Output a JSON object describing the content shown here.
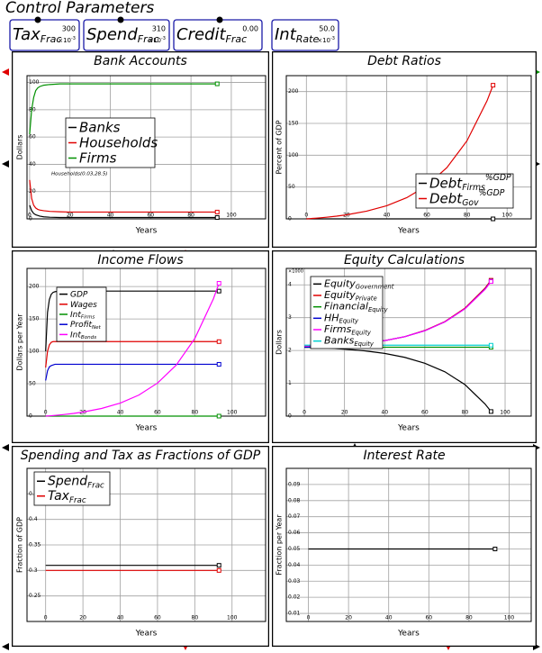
{
  "header": {
    "title": "Control Parameters"
  },
  "controls": [
    {
      "name": "Tax",
      "sub": "Frac",
      "value": "300",
      "scale": "×10",
      "scale_exp": "-3"
    },
    {
      "name": "Spend",
      "sub": "Frac",
      "value": "310",
      "scale": "×10",
      "scale_exp": "-3"
    },
    {
      "name": "Credit",
      "sub": "Frac",
      "value": "0.00"
    },
    {
      "name": "Int",
      "sub": "Rate",
      "value": "50.0",
      "scale": "×10",
      "scale_exp": "-3"
    }
  ],
  "chart_data": [
    {
      "type": "line",
      "title": "Bank Accounts",
      "x_label": "Years",
      "y_label": "Dollars",
      "x": [
        0,
        1,
        2,
        3,
        4,
        5,
        7,
        10,
        15,
        20,
        30,
        40,
        50,
        60,
        70,
        80,
        90,
        93
      ],
      "xlim": [
        -1.3,
        117
      ],
      "xticks": [
        0,
        20,
        40,
        60,
        80,
        100
      ],
      "ylim": [
        0,
        105
      ],
      "yticks": [
        0,
        20,
        40,
        60,
        80,
        100
      ],
      "grid": true,
      "annotations": [
        {
          "text": "Households(0.03,28.5)"
        }
      ],
      "series": [
        {
          "name": "Banks",
          "color": "#000000",
          "values": [
            10,
            6,
            4,
            3,
            2.5,
            2,
            1.5,
            1.2,
            1,
            1,
            1,
            1,
            1,
            1,
            1,
            1,
            1,
            1
          ]
        },
        {
          "name": "Households",
          "color": "#e00000",
          "values": [
            28.5,
            15,
            10,
            8,
            7,
            6.5,
            6,
            5.5,
            5.2,
            5,
            5,
            5,
            5,
            5,
            5,
            5,
            5,
            5
          ]
        },
        {
          "name": "Firms",
          "color": "#009000",
          "values": [
            62,
            80,
            89,
            94,
            96,
            97,
            98,
            98.5,
            99,
            99,
            99,
            99,
            99,
            99,
            99,
            99,
            99,
            99
          ]
        }
      ]
    },
    {
      "type": "line",
      "title": "Debt Ratios",
      "x_label": "Years",
      "y_label": "Percent of GDP",
      "x": [
        0,
        1,
        2,
        3,
        4,
        5,
        7,
        10,
        15,
        20,
        30,
        40,
        50,
        60,
        70,
        80,
        90,
        93
      ],
      "xlim": [
        -10,
        112
      ],
      "xticks": [
        0,
        20,
        40,
        60,
        80,
        100
      ],
      "ylim": [
        0,
        225
      ],
      "yticks": [
        0,
        50,
        100,
        150,
        200
      ],
      "grid": true,
      "series": [
        {
          "name": "Debt",
          "sub": "Firms",
          "sup": "%GDP",
          "color": "#000000",
          "values": [
            0,
            0,
            0,
            0,
            0,
            0,
            0,
            0,
            0,
            0,
            0,
            0,
            0,
            0,
            0,
            0,
            0,
            0
          ]
        },
        {
          "name": "Debt",
          "sub": "Gov",
          "sup": "%GDP",
          "color": "#e00000",
          "values": [
            0,
            0.21,
            0.43,
            0.66,
            0.9,
            1.15,
            1.68,
            2.56,
            4.28,
            6.39,
            12.1,
            20.6,
            33.3,
            52.2,
            80.5,
            122.6,
            185.5,
            210
          ]
        }
      ]
    },
    {
      "type": "line",
      "title": "Income Flows",
      "x_label": "Years",
      "y_label": "Dollars per Year",
      "x": [
        0,
        1,
        2,
        3,
        4,
        5,
        7,
        10,
        15,
        20,
        30,
        40,
        50,
        60,
        70,
        80,
        90,
        93
      ],
      "xlim": [
        -10,
        118
      ],
      "xticks": [
        0,
        20,
        40,
        60,
        80,
        100
      ],
      "ylim": [
        0,
        228
      ],
      "yticks": [
        0,
        50,
        100,
        150,
        200
      ],
      "grid": true,
      "series": [
        {
          "name": "GDP",
          "color": "#000000",
          "values": [
            100,
            160,
            180,
            188,
            191,
            192,
            193,
            193,
            193,
            193,
            193,
            193,
            193,
            193,
            193,
            193,
            193,
            193
          ]
        },
        {
          "name": "Wages",
          "color": "#e00000",
          "values": [
            75,
            100,
            110,
            114,
            115,
            115,
            115,
            115,
            115,
            115,
            115,
            115,
            115,
            115,
            115,
            115,
            115,
            115
          ]
        },
        {
          "name": "Int",
          "sub": "Firms",
          "color": "#009000",
          "values": [
            0,
            0,
            0,
            0,
            0,
            0,
            0,
            0,
            0,
            0,
            0,
            0,
            0,
            0,
            0,
            0,
            0,
            0
          ]
        },
        {
          "name": "Profit",
          "sub": "Net",
          "color": "#0000d0",
          "values": [
            55,
            70,
            76,
            78,
            79,
            80,
            80,
            80,
            80,
            80,
            80,
            80,
            80,
            80,
            80,
            80,
            80,
            80
          ]
        },
        {
          "name": "Int",
          "sub": "Bonds",
          "color": "#ff00ff",
          "values": [
            0,
            0.2,
            0.42,
            0.64,
            0.88,
            1.12,
            1.64,
            2.5,
            4.18,
            6.24,
            11.8,
            20.1,
            32.5,
            51,
            78.6,
            119.7,
            181.1,
            205
          ]
        }
      ]
    },
    {
      "type": "line",
      "title": "Equity Calculations",
      "x_label": "Years",
      "y_label": "Dollars",
      "y_scale_note": "×1000",
      "x": [
        0,
        1,
        2,
        3,
        4,
        5,
        7,
        10,
        15,
        20,
        30,
        40,
        50,
        60,
        70,
        80,
        90,
        93
      ],
      "xlim": [
        -9,
        113
      ],
      "xticks": [
        0,
        20,
        40,
        60,
        80,
        100
      ],
      "ylim": [
        0,
        4.5
      ],
      "yticks": [
        0,
        1,
        2,
        3,
        4
      ],
      "grid": true,
      "series": [
        {
          "name": "Equity",
          "sub": "Government",
          "color": "#000000",
          "values": [
            2.1,
            2.1,
            2.1,
            2.09,
            2.09,
            2.09,
            2.08,
            2.08,
            2.06,
            2.04,
            1.99,
            1.91,
            1.79,
            1.61,
            1.35,
            0.96,
            0.37,
            0.14
          ]
        },
        {
          "name": "Equity",
          "sub": "Private",
          "color": "#e00000",
          "values": [
            2.1,
            2.1,
            2.1,
            2.11,
            2.11,
            2.11,
            2.12,
            2.12,
            2.14,
            2.16,
            2.22,
            2.3,
            2.42,
            2.61,
            2.88,
            3.29,
            3.9,
            4.14
          ]
        },
        {
          "name": "Financial",
          "sub": "Equity",
          "color": "#009000",
          "values": [
            2.1,
            2.1,
            2.1,
            2.1,
            2.1,
            2.1,
            2.1,
            2.1,
            2.1,
            2.1,
            2.1,
            2.1,
            2.1,
            2.1,
            2.1,
            2.1,
            2.1,
            2.1
          ]
        },
        {
          "name": "HH",
          "sub": "Equity",
          "color": "#0000d0",
          "values": [
            2.1,
            2.1,
            2.1,
            2.11,
            2.11,
            2.11,
            2.12,
            2.12,
            2.14,
            2.16,
            2.22,
            2.3,
            2.42,
            2.6,
            2.87,
            3.27,
            3.87,
            4.11
          ]
        },
        {
          "name": "Firms",
          "sub": "Equity",
          "color": "#ff00ff",
          "values": [
            2.14,
            2.14,
            2.14,
            2.14,
            2.14,
            2.14,
            2.14,
            2.15,
            2.16,
            2.17,
            2.22,
            2.3,
            2.42,
            2.6,
            2.87,
            3.27,
            3.86,
            4.1
          ]
        },
        {
          "name": "Banks",
          "sub": "Equity",
          "color": "#00d0d0",
          "values": [
            2.16,
            2.16,
            2.16,
            2.16,
            2.16,
            2.16,
            2.16,
            2.16,
            2.16,
            2.16,
            2.16,
            2.16,
            2.16,
            2.16,
            2.16,
            2.16,
            2.16,
            2.16
          ]
        }
      ]
    },
    {
      "type": "line",
      "title": "Spending and Tax as Fractions of GDP",
      "x_label": "Years",
      "y_label": "Fraction of GDP",
      "x": [
        0,
        93
      ],
      "xlim": [
        -10,
        118
      ],
      "xticks": [
        0,
        20,
        40,
        60,
        80,
        100
      ],
      "ylim": [
        0.2,
        0.5
      ],
      "yticks": [
        0.25,
        0.3,
        0.35,
        0.4,
        0.45
      ],
      "grid": true,
      "series": [
        {
          "name": "Spend",
          "sub": "Frac",
          "color": "#000000",
          "values": [
            0.31,
            0.31
          ]
        },
        {
          "name": "Tax",
          "sub": "Frac",
          "color": "#e00000",
          "values": [
            0.3,
            0.3
          ]
        }
      ]
    },
    {
      "type": "line",
      "title": "Interest Rate",
      "x_label": "Years",
      "y_label": "Fraction per Year",
      "x": [
        0,
        93
      ],
      "xlim": [
        -11,
        111
      ],
      "xticks": [
        0,
        20,
        40,
        60,
        80,
        100
      ],
      "ylim": [
        0.005,
        0.1
      ],
      "yticks": [
        0.01,
        0.02,
        0.03,
        0.04,
        0.05,
        0.06,
        0.07,
        0.08,
        0.09
      ],
      "grid": true,
      "series": [
        {
          "color": "#000000",
          "values": [
            0.05,
            0.05
          ]
        }
      ]
    }
  ]
}
